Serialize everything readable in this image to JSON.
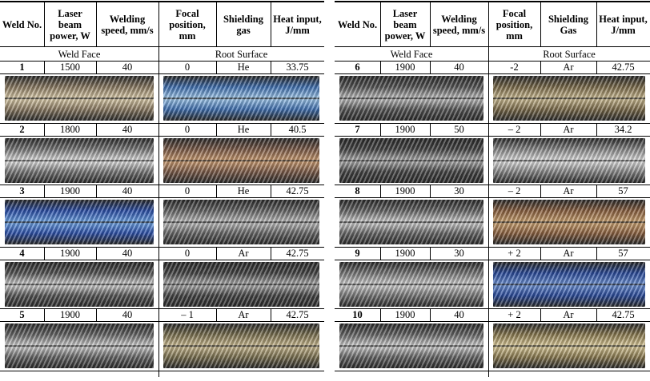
{
  "left_table": {
    "header": [
      "Weld No.",
      "Laser beam power, W",
      "Welding speed, mm/s",
      "Focal position, mm",
      "Shielding gas",
      "Heat input, J/mm"
    ],
    "sections": [
      "Weld Face",
      "Root Surface"
    ],
    "rows": [
      [
        "1",
        "1500",
        "40",
        "0",
        "He",
        "33.75"
      ],
      [
        "2",
        "1800",
        "40",
        "0",
        "He",
        "40.5"
      ],
      [
        "3",
        "1900",
        "40",
        "0",
        "He",
        "42.75"
      ],
      [
        "4",
        "1900",
        "40",
        "0",
        "Ar",
        "42.75"
      ],
      [
        "5",
        "1900",
        "40",
        "– 1",
        "Ar",
        "42.75"
      ]
    ]
  },
  "right_table": {
    "header": [
      "Weld No.",
      "Laser beam power, W",
      "Welding speed, mm/s",
      "Focal position, mm",
      "Shielding Gas",
      "Heat input, J/mm"
    ],
    "sections": [
      "Weld Face",
      "Root Surface"
    ],
    "rows": [
      [
        "6",
        "1900",
        "40",
        "-2",
        "Ar",
        "42.75"
      ],
      [
        "7",
        "1900",
        "50",
        "– 2",
        "Ar",
        "34.2"
      ],
      [
        "8",
        "1900",
        "30",
        "– 2",
        "Ar",
        "57"
      ],
      [
        "9",
        "1900",
        "30",
        "+ 2",
        "Ar",
        "57"
      ],
      [
        "10",
        "1900",
        "40",
        "+ 2",
        "Ar",
        "42.75"
      ]
    ]
  }
}
